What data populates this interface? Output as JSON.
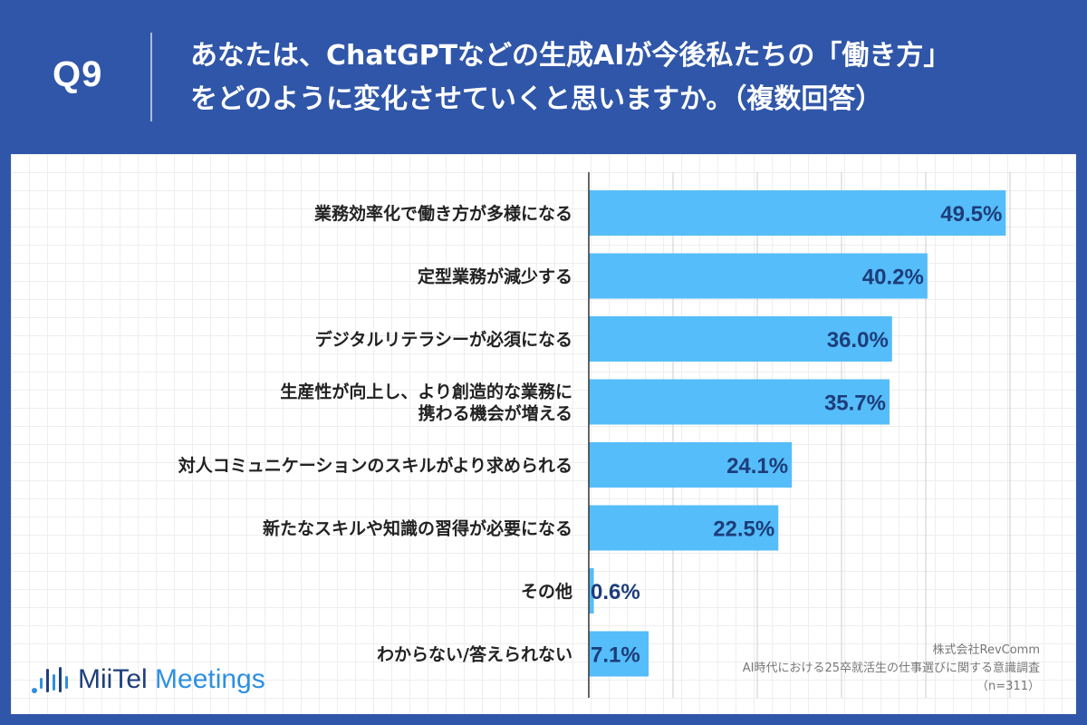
{
  "header": {
    "question_number": "Q9",
    "question_line1": "あなたは、ChatGPTなどの生成AIが今後私たちの「働き方」",
    "question_line2": "をどのように変化させていくと思いますか。（複数回答）"
  },
  "logo": {
    "brand": "MiiTel",
    "product": "Meetings"
  },
  "source": {
    "company": "株式会社RevComm",
    "survey": "AI時代における25卒就活生の仕事選びに関する意識調査",
    "sample": "（n=311）"
  },
  "colors": {
    "header_bg": "#2f56a8",
    "bar": "#55bdf9",
    "value_text": "#1d3d7a",
    "axis": "#333333",
    "gridline": "#cccccc"
  },
  "chart_data": {
    "type": "bar",
    "orientation": "horizontal",
    "categories": [
      [
        "業務効率化で働き方が多様になる"
      ],
      [
        "定型業務が減少する"
      ],
      [
        "デジタルリテラシーが必須になる"
      ],
      [
        "生産性が向上し、より創造的な業務に",
        "携わる機会が増える"
      ],
      [
        "対人コミュニケーションのスキルがより求められる"
      ],
      [
        "新たなスキルや知識の習得が必要になる"
      ],
      [
        "その他"
      ],
      [
        "わからない/答えられない"
      ]
    ],
    "values": [
      49.5,
      40.2,
      36.0,
      35.7,
      24.1,
      22.5,
      0.6,
      7.1
    ],
    "value_labels": [
      "49.5%",
      "40.2%",
      "36.0%",
      "35.7%",
      "24.1%",
      "22.5%",
      "0.6%",
      "7.1%"
    ],
    "xlim": [
      0,
      50
    ],
    "gridlines_at": [
      10,
      20,
      30,
      40,
      50
    ],
    "unit": "%"
  }
}
